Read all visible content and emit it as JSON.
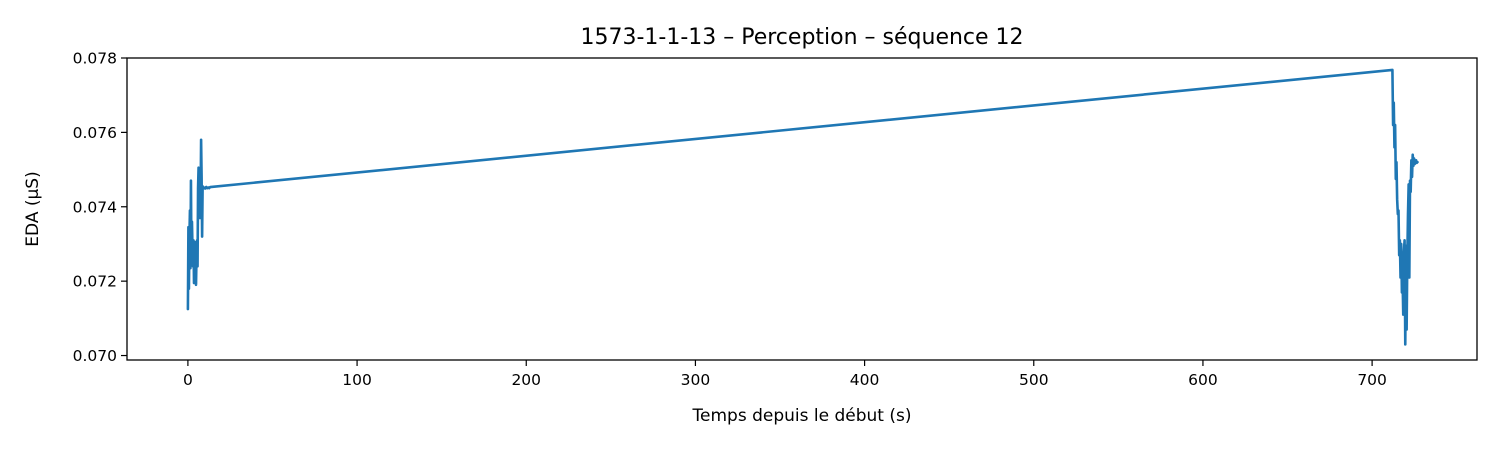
{
  "chart_data": {
    "type": "line",
    "title": "1573-1-1-13 – Perception – séquence 12",
    "xlabel": "Temps depuis le début (s)",
    "ylabel": "EDA (µS)",
    "xlim": [
      -36,
      762
    ],
    "ylim": [
      0.06988,
      0.078
    ],
    "x_ticks": [
      0,
      100,
      200,
      300,
      400,
      500,
      600,
      700
    ],
    "x_tick_labels": [
      "0",
      "100",
      "200",
      "300",
      "400",
      "500",
      "600",
      "700"
    ],
    "y_ticks": [
      0.07,
      0.072,
      0.074,
      0.076,
      0.078
    ],
    "y_tick_labels": [
      "0.070",
      "0.072",
      "0.074",
      "0.076",
      "0.078"
    ],
    "grid": false,
    "series": [
      {
        "color": "#1f77b4",
        "x": [
          0,
          0.3,
          0.6,
          0.9,
          1.2,
          1.5,
          1.8,
          2.1,
          2.4,
          2.7,
          3.0,
          3.3,
          3.6,
          3.9,
          4.2,
          4.5,
          4.8,
          5.1,
          5.4,
          5.7,
          6.0,
          6.3,
          6.6,
          6.9,
          7.2,
          7.5,
          7.8,
          8.1,
          8.4,
          8.7,
          9.0,
          9.3,
          9.6,
          9.9,
          10.2,
          10.5,
          10.8,
          11.1,
          11.4,
          11.7,
          12.0,
          12.3,
          12.6,
          12.9,
          13.2,
          712,
          712.4,
          712.8,
          713.2,
          713.6,
          714.0,
          714.4,
          714.8,
          715.2,
          715.6,
          716.0,
          716.4,
          716.8,
          717.2,
          717.6,
          718.0,
          718.4,
          718.8,
          719.2,
          719.6,
          720.0,
          720.4,
          720.8,
          721.2,
          721.6,
          722.0,
          722.4,
          722.8,
          723.2,
          723.6,
          724.0,
          724.4,
          724.8,
          725.2,
          725.6,
          726.0,
          726.4,
          726.8
        ],
        "y": [
          0.07125,
          0.07345,
          0.0718,
          0.0732,
          0.0739,
          0.07235,
          0.0747,
          0.0725,
          0.0736,
          0.0729,
          0.0724,
          0.0731,
          0.07195,
          0.0728,
          0.07305,
          0.07215,
          0.0719,
          0.0727,
          0.0731,
          0.0724,
          0.0745,
          0.07505,
          0.0738,
          0.0746,
          0.0737,
          0.0742,
          0.0758,
          0.0748,
          0.0732,
          0.07455,
          0.07453,
          0.07452,
          0.07451,
          0.0745,
          0.07449,
          0.07452,
          0.07453,
          0.07451,
          0.0745,
          0.07451,
          0.07452,
          0.07451,
          0.0745,
          0.07452,
          0.07453,
          0.07768,
          0.0762,
          0.0768,
          0.0756,
          0.0762,
          0.07475,
          0.0752,
          0.0742,
          0.0738,
          0.0739,
          0.0727,
          0.0731,
          0.0721,
          0.073,
          0.0717,
          0.0721,
          0.0711,
          0.0728,
          0.0731,
          0.0703,
          0.07295,
          0.0707,
          0.0726,
          0.0738,
          0.0746,
          0.0721,
          0.0747,
          0.0744,
          0.07525,
          0.0748,
          0.0754,
          0.0751,
          0.0753,
          0.07515,
          0.0752,
          0.07525,
          0.07518,
          0.0752
        ]
      }
    ]
  }
}
